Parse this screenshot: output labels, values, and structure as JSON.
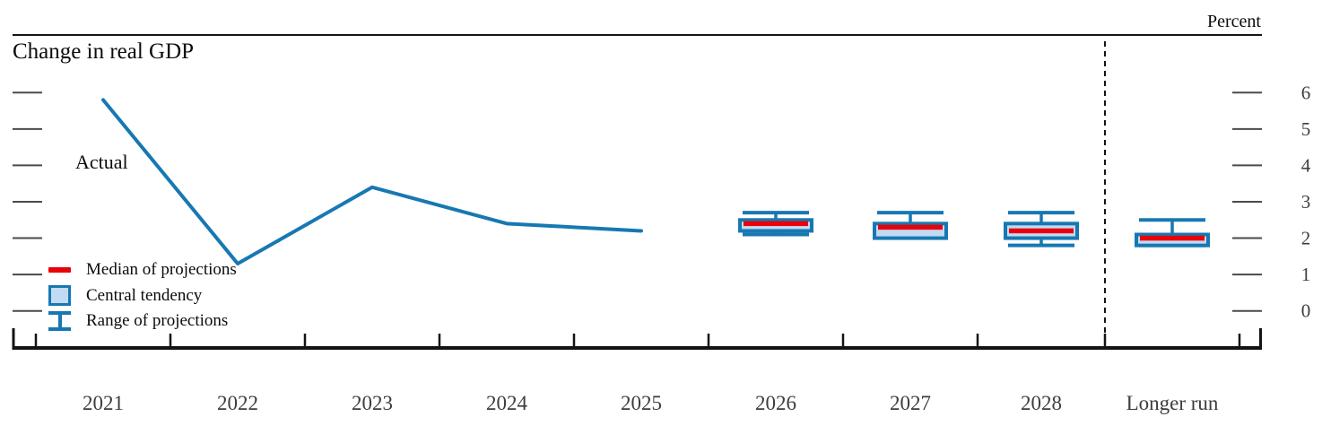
{
  "chart": {
    "title": "Change in real GDP",
    "unit_label": "Percent",
    "actual_label": "Actual"
  },
  "legend": {
    "items": [
      {
        "icon": "median-dash-icon",
        "label": "Median of projections"
      },
      {
        "icon": "central-tendency-box-icon",
        "label": "Central tendency"
      },
      {
        "icon": "range-whisker-icon",
        "label": "Range of projections"
      }
    ]
  },
  "chart_data": {
    "type": "line",
    "title": "Change in real GDP",
    "unit_label": "Percent",
    "ylabel": "Percent",
    "ylim": [
      -1,
      7.5
    ],
    "yticks": [
      0,
      1,
      2,
      3,
      4,
      5,
      6
    ],
    "grid": "off",
    "legend_position": "lower-left",
    "x_categories": [
      "2021",
      "2022",
      "2023",
      "2024",
      "2025",
      "2026",
      "2027",
      "2028",
      "Longer run"
    ],
    "actual": {
      "label": "Actual",
      "categories": [
        "2021",
        "2022",
        "2023",
        "2024",
        "2025"
      ],
      "values": [
        5.8,
        1.3,
        3.4,
        2.4,
        2.2
      ]
    },
    "projections": [
      {
        "category": "2026",
        "median": 2.4,
        "central_tendency": [
          2.2,
          2.5
        ],
        "range": [
          2.1,
          2.7
        ]
      },
      {
        "category": "2027",
        "median": 2.3,
        "central_tendency": [
          2.0,
          2.4
        ],
        "range": [
          2.0,
          2.7
        ]
      },
      {
        "category": "2028",
        "median": 2.2,
        "central_tendency": [
          2.0,
          2.4
        ],
        "range": [
          1.8,
          2.7
        ]
      },
      {
        "category": "Longer run",
        "median": 2.0,
        "central_tendency": [
          1.8,
          2.1
        ],
        "range": [
          1.8,
          2.5
        ]
      }
    ],
    "separator_after": "2028",
    "colors": {
      "line_blue": "#1778B2",
      "box_fill": "#C2DAF2",
      "median_red": "#E90009",
      "axis_black": "#141414",
      "tick_gray": "#4A4A4A",
      "label_gray": "#3D3D3D"
    }
  }
}
